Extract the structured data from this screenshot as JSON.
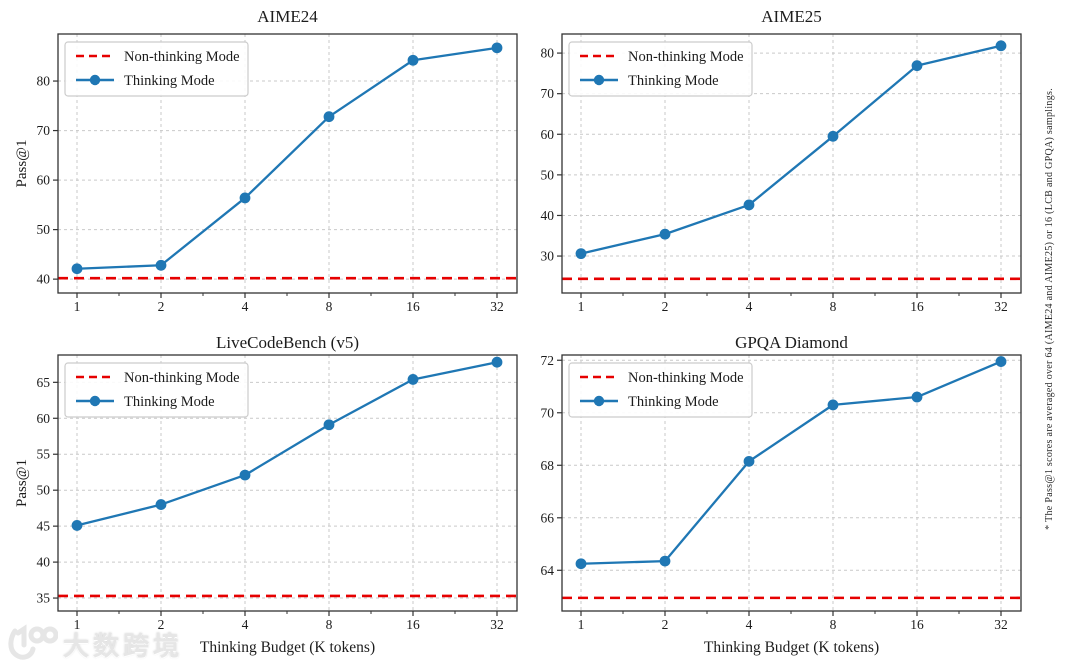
{
  "figure": {
    "side_note": "* The Pass@1 scores are averaged over 64 (AIME24 and AIME25) or 16 (LCB and GPQA) samplings.",
    "xlabel": "Thinking Budget (K tokens)",
    "ylabel": "Pass@1",
    "legend_labels": [
      "Non-thinking Mode",
      "Thinking Mode"
    ],
    "legend_position": "upper left",
    "colors": {
      "thinking": "#1f77b4",
      "non_thinking": "#e60000",
      "grid": "#c9c9c9",
      "spine": "#333333",
      "text": "#1c1c1c",
      "legend_border": "#cccccc",
      "background": "#ffffff"
    }
  },
  "watermark": {
    "text": "大数跨境",
    "icon": "brand-logo-icon"
  },
  "chart_data": [
    {
      "type": "line",
      "title": "AIME24",
      "xscale": "log2",
      "x": [
        1,
        2,
        4,
        8,
        16,
        32
      ],
      "xlabel": "",
      "ylabel": "Pass@1",
      "yticks": [
        40,
        50,
        60,
        70,
        80
      ],
      "ylim": [
        37.2,
        89.5
      ],
      "grid": true,
      "legend_position": "upper left",
      "series": [
        {
          "name": "Non-thinking Mode",
          "style": "dashed-hline",
          "color": "#e60000",
          "value": 40.2
        },
        {
          "name": "Thinking Mode",
          "style": "line-marker",
          "color": "#1f77b4",
          "values": [
            42.1,
            42.8,
            56.4,
            72.8,
            84.2,
            86.7
          ]
        }
      ]
    },
    {
      "type": "line",
      "title": "AIME25",
      "xscale": "log2",
      "x": [
        1,
        2,
        4,
        8,
        16,
        32
      ],
      "xlabel": "",
      "ylabel": "",
      "yticks": [
        30,
        40,
        50,
        60,
        70,
        80
      ],
      "ylim": [
        20.9,
        84.7
      ],
      "grid": true,
      "legend_position": "upper left",
      "series": [
        {
          "name": "Non-thinking Mode",
          "style": "dashed-hline",
          "color": "#e60000",
          "value": 24.4
        },
        {
          "name": "Thinking Mode",
          "style": "line-marker",
          "color": "#1f77b4",
          "values": [
            30.6,
            35.4,
            42.6,
            59.5,
            76.9,
            81.8
          ]
        }
      ]
    },
    {
      "type": "line",
      "title": "LiveCodeBench (v5)",
      "xscale": "log2",
      "x": [
        1,
        2,
        4,
        8,
        16,
        32
      ],
      "xlabel": "Thinking Budget (K tokens)",
      "ylabel": "Pass@1",
      "yticks": [
        35,
        40,
        45,
        50,
        55,
        60,
        65
      ],
      "ylim": [
        33.2,
        68.8
      ],
      "grid": true,
      "legend_position": "upper left",
      "series": [
        {
          "name": "Non-thinking Mode",
          "style": "dashed-hline",
          "color": "#e60000",
          "value": 35.3
        },
        {
          "name": "Thinking Mode",
          "style": "line-marker",
          "color": "#1f77b4",
          "values": [
            45.1,
            48.0,
            52.1,
            59.1,
            65.4,
            67.8
          ]
        }
      ]
    },
    {
      "type": "line",
      "title": "GPQA Diamond",
      "xscale": "log2",
      "x": [
        1,
        2,
        4,
        8,
        16,
        32
      ],
      "xlabel": "Thinking Budget (K tokens)",
      "ylabel": "",
      "yticks": [
        64,
        66,
        68,
        70,
        72
      ],
      "ylim": [
        62.45,
        72.2
      ],
      "grid": true,
      "legend_position": "upper left",
      "series": [
        {
          "name": "Non-thinking Mode",
          "style": "dashed-hline",
          "color": "#e60000",
          "value": 62.95
        },
        {
          "name": "Thinking Mode",
          "style": "line-marker",
          "color": "#1f77b4",
          "values": [
            64.25,
            64.35,
            68.15,
            70.3,
            70.6,
            71.95
          ]
        }
      ]
    }
  ]
}
